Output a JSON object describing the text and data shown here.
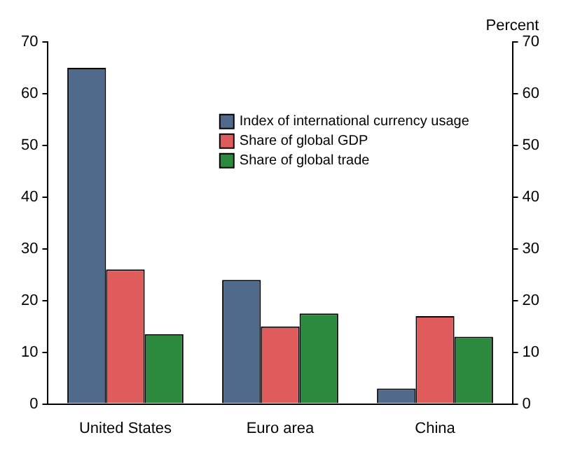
{
  "chart_data": {
    "type": "bar",
    "categories": [
      "United States",
      "Euro area",
      "China"
    ],
    "series": [
      {
        "name": "Index of international currency usage",
        "color": "#4f6a8a",
        "values": [
          65,
          24,
          3
        ]
      },
      {
        "name": "Share of global GDP",
        "color": "#e05c5c",
        "values": [
          26,
          15,
          17
        ]
      },
      {
        "name": "Share of global trade",
        "color": "#2b8a3e",
        "values": [
          13.5,
          17.5,
          13
        ]
      }
    ],
    "ylim": [
      0,
      70
    ],
    "yticks": [
      0,
      10,
      20,
      30,
      40,
      50,
      60,
      70
    ],
    "y2lim": [
      0,
      70
    ],
    "y2ticks": [
      0,
      10,
      20,
      30,
      40,
      50,
      60,
      70
    ],
    "y2label": "Percent",
    "grid": false,
    "legend": "top right"
  }
}
